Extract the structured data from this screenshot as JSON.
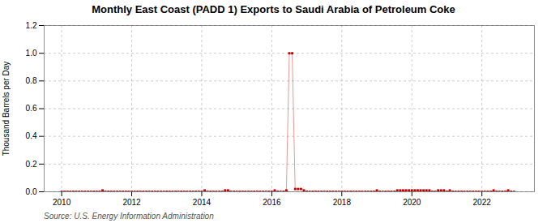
{
  "chart_data": {
    "type": "line",
    "title": "Monthly East Coast (PADD 1) Exports to Saudi Arabia of Petroleum Coke",
    "ylabel": "Thousand Barrels per Day",
    "source": "Source: U.S. Energy Information Administration",
    "color": "#c00000",
    "marker": "square",
    "grid": true,
    "xlim": [
      2009.5,
      2023.5
    ],
    "ylim": [
      0,
      1.2
    ],
    "xticks": [
      2010,
      2012,
      2014,
      2016,
      2018,
      2020,
      2022
    ],
    "yticks": [
      {
        "value": 0.0,
        "label": "0.0"
      },
      0.2,
      0.4,
      0.6,
      0.8,
      {
        "value": 1.0,
        "label": "1.0"
      },
      1.2
    ],
    "x": [
      2010.0,
      2010.083,
      2010.167,
      2010.25,
      2010.333,
      2010.417,
      2010.5,
      2010.583,
      2010.667,
      2010.75,
      2010.833,
      2010.917,
      2011.0,
      2011.083,
      2011.167,
      2011.25,
      2011.333,
      2011.417,
      2011.5,
      2011.583,
      2011.667,
      2011.75,
      2011.833,
      2011.917,
      2012.0,
      2012.083,
      2012.167,
      2012.25,
      2012.333,
      2012.417,
      2012.5,
      2012.583,
      2012.667,
      2012.75,
      2012.833,
      2012.917,
      2013.0,
      2013.083,
      2013.167,
      2013.25,
      2013.333,
      2013.417,
      2013.5,
      2013.583,
      2013.667,
      2013.75,
      2013.833,
      2013.917,
      2014.0,
      2014.083,
      2014.167,
      2014.25,
      2014.333,
      2014.417,
      2014.5,
      2014.583,
      2014.667,
      2014.75,
      2014.833,
      2014.917,
      2015.0,
      2015.083,
      2015.167,
      2015.25,
      2015.333,
      2015.417,
      2015.5,
      2015.583,
      2015.667,
      2015.75,
      2015.833,
      2015.917,
      2016.0,
      2016.083,
      2016.167,
      2016.25,
      2016.333,
      2016.417,
      2016.5,
      2016.583,
      2016.667,
      2016.75,
      2016.833,
      2016.917,
      2017.0,
      2017.083,
      2017.167,
      2017.25,
      2017.333,
      2017.417,
      2017.5,
      2017.583,
      2017.667,
      2017.75,
      2017.833,
      2017.917,
      2018.0,
      2018.083,
      2018.167,
      2018.25,
      2018.333,
      2018.417,
      2018.5,
      2018.583,
      2018.667,
      2018.75,
      2018.833,
      2018.917,
      2019.0,
      2019.083,
      2019.167,
      2019.25,
      2019.333,
      2019.417,
      2019.5,
      2019.583,
      2019.667,
      2019.75,
      2019.833,
      2019.917,
      2020.0,
      2020.083,
      2020.167,
      2020.25,
      2020.333,
      2020.417,
      2020.5,
      2020.583,
      2020.667,
      2020.75,
      2020.833,
      2020.917,
      2021.0,
      2021.083,
      2021.167,
      2021.25,
      2021.333,
      2021.417,
      2021.5,
      2021.583,
      2021.667,
      2021.75,
      2021.833,
      2021.917,
      2022.0,
      2022.083,
      2022.167,
      2022.25,
      2022.333,
      2022.417,
      2022.5,
      2022.583,
      2022.667,
      2022.75,
      2022.833,
      2022.917
    ],
    "values": [
      0.0,
      0.0,
      0.0,
      0.0,
      0.0,
      0.0,
      0.0,
      0.0,
      0.0,
      0.0,
      0.0,
      0.0,
      0.0,
      0.0,
      0.01,
      0.0,
      0.0,
      0.0,
      0.0,
      0.0,
      0.0,
      0.0,
      0.0,
      0.0,
      0.0,
      0.0,
      0.0,
      0.0,
      0.0,
      0.0,
      0.0,
      0.0,
      0.0,
      0.0,
      0.0,
      0.0,
      0.0,
      0.0,
      0.0,
      0.0,
      0.0,
      0.0,
      0.0,
      0.0,
      0.0,
      0.0,
      0.0,
      0.0,
      0.0,
      0.01,
      0.0,
      0.0,
      0.0,
      0.0,
      0.0,
      0.0,
      0.01,
      0.01,
      0.0,
      0.0,
      0.0,
      0.0,
      0.0,
      0.0,
      0.0,
      0.0,
      0.0,
      0.0,
      0.0,
      0.0,
      0.0,
      0.0,
      0.0,
      0.01,
      0.0,
      0.0,
      0.0,
      0.01,
      1.0,
      1.0,
      0.02,
      0.02,
      0.02,
      0.01,
      0.0,
      0.0,
      0.0,
      0.0,
      0.0,
      0.0,
      0.0,
      0.0,
      0.0,
      0.0,
      0.0,
      0.0,
      0.0,
      0.0,
      0.0,
      0.0,
      0.0,
      0.0,
      0.0,
      0.0,
      0.0,
      0.0,
      0.0,
      0.0,
      0.01,
      0.0,
      0.0,
      0.0,
      0.0,
      0.0,
      0.0,
      0.01,
      0.01,
      0.01,
      0.01,
      0.01,
      0.01,
      0.01,
      0.01,
      0.01,
      0.01,
      0.01,
      0.01,
      0.0,
      0.0,
      0.01,
      0.01,
      0.01,
      0.0,
      0.01,
      0.0,
      0.0,
      0.0,
      0.0,
      0.0,
      0.0,
      0.0,
      0.0,
      0.0,
      0.0,
      0.0,
      0.0,
      0.0,
      0.0,
      0.01,
      0.0,
      0.0,
      0.0,
      0.0,
      0.01,
      0.0,
      0.0
    ]
  }
}
